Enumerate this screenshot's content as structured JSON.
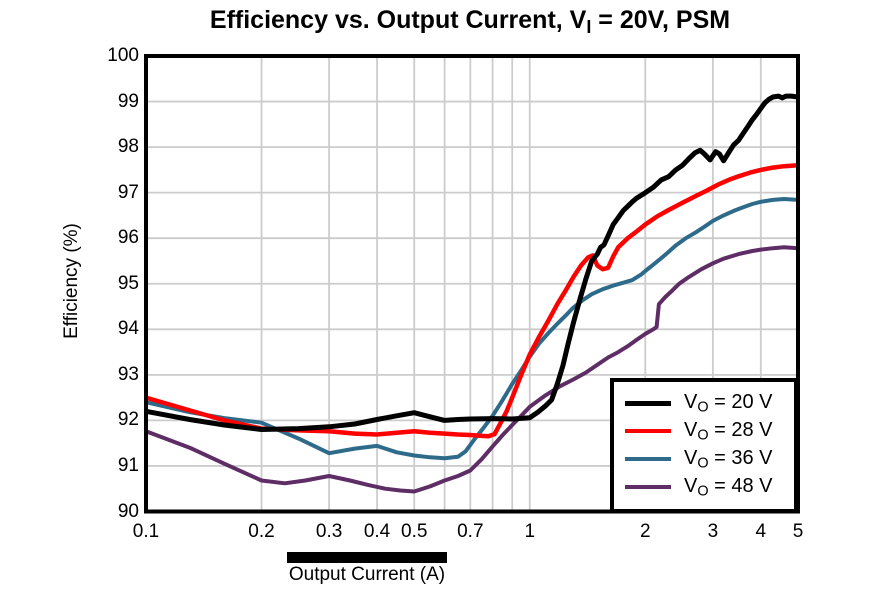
{
  "title": {
    "pre": "Efficiency vs. Output Current, V",
    "sub": "I",
    "post": " = 20V, PSM"
  },
  "chart_data": {
    "type": "line",
    "title": "Efficiency vs. Output Current, VI = 20V, PSM",
    "background": "#ffffff",
    "grid_color": "#cccccc",
    "axis_color": "#000000",
    "x_axis": {
      "label": "Output Current (A)",
      "scale": "log",
      "range": [
        0.1,
        5
      ],
      "tick_labels": [
        {
          "label": "0.1",
          "value": 0.1
        },
        {
          "label": "0.2",
          "value": 0.2
        },
        {
          "label": "0.3",
          "value": 0.3
        },
        {
          "label": "0.4",
          "value": 0.4
        },
        {
          "label": "0.5",
          "value": 0.5
        },
        {
          "label": "0.7",
          "value": 0.7
        },
        {
          "label": "1",
          "value": 1
        },
        {
          "label": "2",
          "value": 2
        },
        {
          "label": "3",
          "value": 3
        },
        {
          "label": "4",
          "value": 4
        },
        {
          "label": "5",
          "value": 5
        }
      ],
      "gridlines": [
        0.2,
        0.3,
        0.4,
        0.5,
        0.6,
        0.7,
        0.8,
        0.9,
        1,
        2,
        3,
        4
      ]
    },
    "y_axis": {
      "label": "Efficiency (%)",
      "scale": "linear",
      "range": [
        90,
        100
      ],
      "tick_labels": [
        {
          "label": "100",
          "value": 100
        },
        {
          "label": "99",
          "value": 99
        },
        {
          "label": "98",
          "value": 98
        },
        {
          "label": "97",
          "value": 97
        },
        {
          "label": "96",
          "value": 96
        },
        {
          "label": "95",
          "value": 95
        },
        {
          "label": "94",
          "value": 94
        },
        {
          "label": "93",
          "value": 93
        },
        {
          "label": "92",
          "value": 92
        },
        {
          "label": "91",
          "value": 91
        },
        {
          "label": "90",
          "value": 90
        }
      ],
      "gridlines": [
        91,
        92,
        93,
        94,
        95,
        96,
        97,
        98,
        99
      ]
    },
    "legend": {
      "position": "bottom-right",
      "items": [
        {
          "pre": "V",
          "sub": "O",
          "post": " = 20 V"
        },
        {
          "pre": "V",
          "sub": "O",
          "post": " = 28 V"
        },
        {
          "pre": "V",
          "sub": "O",
          "post": " = 36 V"
        },
        {
          "pre": "V",
          "sub": "O",
          "post": " = 48 V"
        }
      ]
    },
    "series": [
      {
        "name": "VO = 20 V",
        "color": "#000000",
        "width": 5,
        "points": [
          [
            0.1,
            92.2
          ],
          [
            0.13,
            92.02
          ],
          [
            0.16,
            91.9
          ],
          [
            0.2,
            91.8
          ],
          [
            0.25,
            91.82
          ],
          [
            0.3,
            91.86
          ],
          [
            0.35,
            91.92
          ],
          [
            0.4,
            92.02
          ],
          [
            0.45,
            92.1
          ],
          [
            0.5,
            92.17
          ],
          [
            0.55,
            92.08
          ],
          [
            0.6,
            92.0
          ],
          [
            0.65,
            92.02
          ],
          [
            0.7,
            92.03
          ],
          [
            0.8,
            92.04
          ],
          [
            0.9,
            92.03
          ],
          [
            1.0,
            92.06
          ],
          [
            1.05,
            92.18
          ],
          [
            1.1,
            92.32
          ],
          [
            1.14,
            92.45
          ],
          [
            1.18,
            92.8
          ],
          [
            1.22,
            93.2
          ],
          [
            1.26,
            93.7
          ],
          [
            1.3,
            94.15
          ],
          [
            1.35,
            94.65
          ],
          [
            1.4,
            95.1
          ],
          [
            1.45,
            95.5
          ],
          [
            1.5,
            95.65
          ],
          [
            1.53,
            95.8
          ],
          [
            1.56,
            95.85
          ],
          [
            1.6,
            96.05
          ],
          [
            1.65,
            96.3
          ],
          [
            1.7,
            96.45
          ],
          [
            1.75,
            96.6
          ],
          [
            1.8,
            96.7
          ],
          [
            1.85,
            96.8
          ],
          [
            1.9,
            96.88
          ],
          [
            2.0,
            97.0
          ],
          [
            2.1,
            97.12
          ],
          [
            2.2,
            97.28
          ],
          [
            2.3,
            97.35
          ],
          [
            2.4,
            97.5
          ],
          [
            2.5,
            97.6
          ],
          [
            2.6,
            97.75
          ],
          [
            2.7,
            97.88
          ],
          [
            2.78,
            97.93
          ],
          [
            2.85,
            97.85
          ],
          [
            2.95,
            97.72
          ],
          [
            3.05,
            97.9
          ],
          [
            3.12,
            97.85
          ],
          [
            3.2,
            97.7
          ],
          [
            3.3,
            97.88
          ],
          [
            3.4,
            98.05
          ],
          [
            3.5,
            98.15
          ],
          [
            3.6,
            98.3
          ],
          [
            3.7,
            98.45
          ],
          [
            3.8,
            98.6
          ],
          [
            3.9,
            98.72
          ],
          [
            4.0,
            98.85
          ],
          [
            4.1,
            98.97
          ],
          [
            4.2,
            99.05
          ],
          [
            4.3,
            99.1
          ],
          [
            4.45,
            99.12
          ],
          [
            4.55,
            99.08
          ],
          [
            4.65,
            99.12
          ],
          [
            4.8,
            99.12
          ],
          [
            5.0,
            99.1
          ]
        ]
      },
      {
        "name": "VO = 28 V",
        "color": "#ff0000",
        "width": 4.5,
        "points": [
          [
            0.1,
            92.5
          ],
          [
            0.13,
            92.22
          ],
          [
            0.16,
            92.0
          ],
          [
            0.2,
            91.82
          ],
          [
            0.25,
            91.78
          ],
          [
            0.3,
            91.76
          ],
          [
            0.35,
            91.71
          ],
          [
            0.4,
            91.69
          ],
          [
            0.45,
            91.73
          ],
          [
            0.5,
            91.76
          ],
          [
            0.55,
            91.73
          ],
          [
            0.6,
            91.71
          ],
          [
            0.65,
            91.69
          ],
          [
            0.7,
            91.68
          ],
          [
            0.75,
            91.66
          ],
          [
            0.78,
            91.65
          ],
          [
            0.81,
            91.7
          ],
          [
            0.84,
            91.95
          ],
          [
            0.87,
            92.2
          ],
          [
            0.9,
            92.5
          ],
          [
            0.95,
            93.0
          ],
          [
            1.0,
            93.45
          ],
          [
            1.06,
            93.85
          ],
          [
            1.12,
            94.2
          ],
          [
            1.18,
            94.55
          ],
          [
            1.24,
            94.85
          ],
          [
            1.3,
            95.15
          ],
          [
            1.36,
            95.4
          ],
          [
            1.42,
            95.58
          ],
          [
            1.46,
            95.62
          ],
          [
            1.5,
            95.4
          ],
          [
            1.55,
            95.32
          ],
          [
            1.6,
            95.35
          ],
          [
            1.65,
            95.6
          ],
          [
            1.7,
            95.8
          ],
          [
            1.8,
            96.0
          ],
          [
            1.9,
            96.15
          ],
          [
            2.0,
            96.3
          ],
          [
            2.15,
            96.48
          ],
          [
            2.3,
            96.62
          ],
          [
            2.5,
            96.78
          ],
          [
            2.7,
            96.92
          ],
          [
            2.9,
            97.05
          ],
          [
            3.1,
            97.18
          ],
          [
            3.3,
            97.28
          ],
          [
            3.5,
            97.36
          ],
          [
            3.75,
            97.44
          ],
          [
            4.0,
            97.5
          ],
          [
            4.3,
            97.55
          ],
          [
            4.6,
            97.58
          ],
          [
            5.0,
            97.6
          ]
        ]
      },
      {
        "name": "VO = 36 V",
        "color": "#2e6b8a",
        "width": 4,
        "points": [
          [
            0.1,
            92.4
          ],
          [
            0.13,
            92.18
          ],
          [
            0.16,
            92.05
          ],
          [
            0.2,
            91.95
          ],
          [
            0.25,
            91.6
          ],
          [
            0.3,
            91.28
          ],
          [
            0.35,
            91.38
          ],
          [
            0.4,
            91.44
          ],
          [
            0.45,
            91.3
          ],
          [
            0.5,
            91.23
          ],
          [
            0.55,
            91.19
          ],
          [
            0.6,
            91.17
          ],
          [
            0.65,
            91.2
          ],
          [
            0.68,
            91.32
          ],
          [
            0.72,
            91.6
          ],
          [
            0.76,
            91.85
          ],
          [
            0.8,
            92.1
          ],
          [
            0.85,
            92.45
          ],
          [
            0.9,
            92.8
          ],
          [
            0.95,
            93.1
          ],
          [
            1.0,
            93.4
          ],
          [
            1.06,
            93.7
          ],
          [
            1.12,
            93.92
          ],
          [
            1.18,
            94.12
          ],
          [
            1.24,
            94.3
          ],
          [
            1.3,
            94.48
          ],
          [
            1.38,
            94.65
          ],
          [
            1.45,
            94.77
          ],
          [
            1.55,
            94.88
          ],
          [
            1.65,
            94.96
          ],
          [
            1.75,
            95.02
          ],
          [
            1.85,
            95.08
          ],
          [
            1.95,
            95.2
          ],
          [
            2.0,
            95.28
          ],
          [
            2.1,
            95.42
          ],
          [
            2.2,
            95.56
          ],
          [
            2.3,
            95.7
          ],
          [
            2.4,
            95.84
          ],
          [
            2.55,
            96.0
          ],
          [
            2.7,
            96.12
          ],
          [
            2.85,
            96.25
          ],
          [
            3.0,
            96.38
          ],
          [
            3.2,
            96.5
          ],
          [
            3.4,
            96.6
          ],
          [
            3.6,
            96.68
          ],
          [
            3.8,
            96.75
          ],
          [
            4.0,
            96.8
          ],
          [
            4.3,
            96.84
          ],
          [
            4.6,
            96.86
          ],
          [
            5.0,
            96.84
          ]
        ]
      },
      {
        "name": "VO = 48 V",
        "color": "#5e2d66",
        "width": 4,
        "points": [
          [
            0.1,
            91.76
          ],
          [
            0.13,
            91.4
          ],
          [
            0.16,
            91.05
          ],
          [
            0.2,
            90.68
          ],
          [
            0.23,
            90.62
          ],
          [
            0.26,
            90.68
          ],
          [
            0.3,
            90.78
          ],
          [
            0.34,
            90.68
          ],
          [
            0.38,
            90.58
          ],
          [
            0.42,
            90.5
          ],
          [
            0.46,
            90.46
          ],
          [
            0.5,
            90.44
          ],
          [
            0.55,
            90.55
          ],
          [
            0.6,
            90.68
          ],
          [
            0.65,
            90.78
          ],
          [
            0.7,
            90.9
          ],
          [
            0.75,
            91.15
          ],
          [
            0.8,
            91.43
          ],
          [
            0.85,
            91.68
          ],
          [
            0.9,
            91.9
          ],
          [
            0.95,
            92.1
          ],
          [
            1.0,
            92.3
          ],
          [
            1.1,
            92.55
          ],
          [
            1.2,
            92.75
          ],
          [
            1.3,
            92.9
          ],
          [
            1.4,
            93.05
          ],
          [
            1.5,
            93.22
          ],
          [
            1.6,
            93.38
          ],
          [
            1.7,
            93.5
          ],
          [
            1.8,
            93.63
          ],
          [
            1.9,
            93.77
          ],
          [
            2.0,
            93.9
          ],
          [
            2.1,
            94.0
          ],
          [
            2.14,
            94.05
          ],
          [
            2.17,
            94.55
          ],
          [
            2.25,
            94.7
          ],
          [
            2.35,
            94.85
          ],
          [
            2.45,
            95.0
          ],
          [
            2.6,
            95.15
          ],
          [
            2.8,
            95.32
          ],
          [
            3.0,
            95.45
          ],
          [
            3.2,
            95.55
          ],
          [
            3.5,
            95.65
          ],
          [
            3.8,
            95.72
          ],
          [
            4.0,
            95.75
          ],
          [
            4.3,
            95.78
          ],
          [
            4.6,
            95.8
          ],
          [
            5.0,
            95.78
          ]
        ]
      }
    ]
  }
}
